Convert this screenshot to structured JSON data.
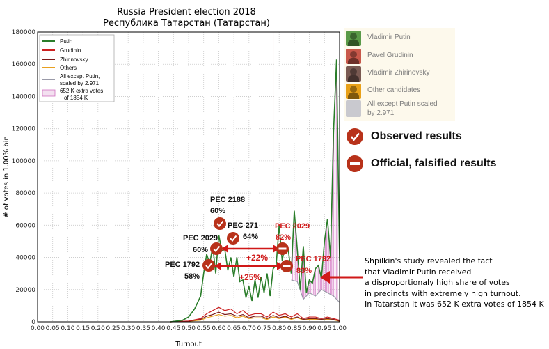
{
  "chart_data": {
    "type": "line",
    "title": "Russia President election 2018",
    "subtitle": "Республика Татарстан (Татарстан)",
    "xlabel": "Turnout",
    "ylabel": "# of votes in 1.00% bin",
    "xlim": [
      0.0,
      1.0
    ],
    "ylim": [
      0,
      180000
    ],
    "xticks": [
      "0.00",
      "0.05",
      "0.10",
      "0.15",
      "0.20",
      "0.25",
      "0.30",
      "0.35",
      "0.40",
      "0.45",
      "0.50",
      "0.55",
      "0.60",
      "0.65",
      "0.70",
      "0.75",
      "0.80",
      "0.85",
      "0.90",
      "0.95",
      "1.00"
    ],
    "yticks": [
      "0",
      "20000",
      "40000",
      "60000",
      "80000",
      "100000",
      "120000",
      "140000",
      "160000",
      "180000"
    ],
    "grid": true,
    "legend_position": "top-left",
    "legend": [
      "Putin",
      "Grudinin",
      "Zhirinovsky",
      "Others",
      "All except Putin, scaled by 2.971",
      "652 K extra votes of 1854 K"
    ],
    "vertical_marker_x": 0.78,
    "series": [
      {
        "name": "Putin",
        "color": "#2a7d2a",
        "x": [
          0.44,
          0.48,
          0.5,
          0.52,
          0.54,
          0.55,
          0.56,
          0.57,
          0.58,
          0.59,
          0.6,
          0.61,
          0.62,
          0.63,
          0.64,
          0.65,
          0.66,
          0.67,
          0.68,
          0.69,
          0.7,
          0.71,
          0.72,
          0.73,
          0.74,
          0.75,
          0.76,
          0.77,
          0.78,
          0.79,
          0.8,
          0.81,
          0.82,
          0.83,
          0.84,
          0.85,
          0.86,
          0.87,
          0.88,
          0.89,
          0.9,
          0.91,
          0.92,
          0.93,
          0.94,
          0.95,
          0.96,
          0.97,
          0.98,
          0.99,
          1.0
        ],
        "y": [
          0,
          1000,
          3000,
          8000,
          16000,
          30000,
          42000,
          36000,
          47000,
          30000,
          54000,
          44000,
          45000,
          32000,
          40000,
          28000,
          40000,
          25000,
          26000,
          15000,
          22000,
          13000,
          26000,
          15000,
          28000,
          18000,
          30000,
          16000,
          33000,
          35000,
          60000,
          38000,
          48000,
          45000,
          30000,
          69000,
          45000,
          20000,
          47000,
          18000,
          26000,
          24000,
          33000,
          35000,
          27000,
          50000,
          64000,
          40000,
          118000,
          163000,
          38000
        ]
      },
      {
        "name": "Grudinin",
        "color": "#cc2020",
        "x": [
          0.44,
          0.5,
          0.54,
          0.56,
          0.58,
          0.6,
          0.62,
          0.64,
          0.66,
          0.68,
          0.7,
          0.72,
          0.74,
          0.76,
          0.78,
          0.8,
          0.82,
          0.84,
          0.86,
          0.88,
          0.9,
          0.92,
          0.94,
          0.96,
          0.98,
          1.0
        ],
        "y": [
          0,
          500,
          2000,
          5000,
          7000,
          9000,
          7000,
          8000,
          5000,
          7000,
          4000,
          5000,
          5000,
          3000,
          6000,
          4000,
          5000,
          3000,
          5000,
          2000,
          3000,
          3000,
          2000,
          3000,
          2000,
          1000
        ]
      },
      {
        "name": "Zhirinovsky",
        "color": "#7a1a1a",
        "x": [
          0.44,
          0.5,
          0.54,
          0.56,
          0.58,
          0.6,
          0.62,
          0.64,
          0.66,
          0.68,
          0.7,
          0.72,
          0.74,
          0.76,
          0.78,
          0.8,
          0.82,
          0.84,
          0.86,
          0.88,
          0.9,
          0.92,
          0.94,
          0.96,
          0.98,
          1.0
        ],
        "y": [
          0,
          400,
          1500,
          3500,
          4500,
          6000,
          4500,
          5000,
          3500,
          4500,
          2500,
          3500,
          3500,
          2000,
          4000,
          2500,
          3500,
          2000,
          3000,
          1500,
          2000,
          2000,
          1500,
          2000,
          1500,
          500
        ]
      },
      {
        "name": "Others",
        "color": "#e8a020",
        "x": [
          0.44,
          0.5,
          0.54,
          0.56,
          0.58,
          0.6,
          0.62,
          0.64,
          0.66,
          0.68,
          0.7,
          0.72,
          0.74,
          0.76,
          0.78,
          0.8,
          0.82,
          0.84,
          0.86,
          0.88,
          0.9,
          0.92,
          0.94,
          0.96,
          0.98,
          1.0
        ],
        "y": [
          0,
          300,
          1000,
          2500,
          3500,
          4500,
          3500,
          4000,
          2500,
          3500,
          2000,
          2500,
          2500,
          1500,
          3000,
          2000,
          3000,
          1500,
          2500,
          1200,
          1500,
          1500,
          1200,
          1500,
          1200,
          400
        ]
      },
      {
        "name": "All except Putin, scaled by 2.971",
        "color": "#9a9aa8",
        "x": [
          0.84,
          0.86,
          0.88,
          0.9,
          0.92,
          0.94,
          0.96,
          0.98,
          1.0
        ],
        "y": [
          26000,
          25000,
          14000,
          18000,
          16000,
          20000,
          18000,
          16000,
          12000
        ]
      }
    ]
  },
  "legend_panel": [
    {
      "label": "Vladimir Putin",
      "color": "#5a9a48",
      "icon": "putin-portrait-icon"
    },
    {
      "label": "Pavel Grudinin",
      "color": "#c8584a",
      "icon": "grudinin-portrait-icon"
    },
    {
      "label": "Vladimir Zhirinovsky",
      "color": "#7a5a52",
      "icon": "zhirinovsky-portrait-icon"
    },
    {
      "label": "Other candidates",
      "color": "#e8a018",
      "icon": "other-candidates-icon"
    }
  ],
  "legend_panel_scaled": {
    "line1": "All except Putin scaled",
    "line2": "by 2.971"
  },
  "key": {
    "observed": "Observed results",
    "official": "Official, falsified results",
    "color": "#b8321a"
  },
  "annotations": {
    "observed": [
      {
        "pec": "PEC 2188",
        "pct": "60%"
      },
      {
        "pec": "PEC 271",
        "pct": "64%"
      },
      {
        "pec": "PEC 2029",
        "pct": "60%"
      },
      {
        "pec": "PEC 1792",
        "pct": "58%"
      }
    ],
    "official": [
      {
        "pec": "PEC 2029",
        "pct": "82%"
      },
      {
        "pec": "PEC 1792",
        "pct": "83%"
      }
    ],
    "deltas": [
      "+22%",
      "+25%"
    ]
  },
  "note": [
    "Shpilkin's study revealed the fact",
    "that Vladimir Putin received",
    "a disproportionaly high share of votes",
    "in precincts with extremely high turnout.",
    "In Tatarstan it was 652 K extra votes of 1854 K"
  ]
}
